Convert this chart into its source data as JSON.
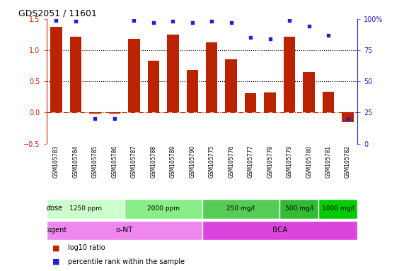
{
  "title": "GDS2051 / 11601",
  "samples": [
    "GSM105783",
    "GSM105784",
    "GSM105785",
    "GSM105786",
    "GSM105787",
    "GSM105788",
    "GSM105789",
    "GSM105790",
    "GSM105775",
    "GSM105776",
    "GSM105777",
    "GSM105778",
    "GSM105779",
    "GSM105780",
    "GSM105781",
    "GSM105782"
  ],
  "log10_ratio": [
    1.37,
    1.22,
    -0.02,
    -0.02,
    1.18,
    0.83,
    1.25,
    0.68,
    1.13,
    0.85,
    0.31,
    0.32,
    1.22,
    0.65,
    0.33,
    -0.15
  ],
  "percentile": [
    99,
    98,
    20,
    20,
    99,
    97,
    98,
    97,
    98,
    97,
    85,
    84,
    99,
    94,
    87,
    20
  ],
  "bar_color": "#bb2200",
  "dot_color": "#2222cc",
  "ylim_left": [
    -0.5,
    1.5
  ],
  "ylim_right": [
    0,
    100
  ],
  "yticks_left": [
    -0.5,
    0.0,
    0.5,
    1.0,
    1.5
  ],
  "yticks_right": [
    0,
    25,
    50,
    75,
    100
  ],
  "hlines": [
    0.0,
    0.5,
    1.0
  ],
  "hline_colors": [
    "#cc2200",
    "#000000",
    "#000000"
  ],
  "hline_styles": [
    "dashdot",
    "dotted",
    "dotted"
  ],
  "dose_groups": [
    {
      "label": "1250 ppm",
      "start": 0,
      "end": 4,
      "color": "#ccffcc"
    },
    {
      "label": "2000 ppm",
      "start": 4,
      "end": 8,
      "color": "#88ee88"
    },
    {
      "label": "250 mg/l",
      "start": 8,
      "end": 12,
      "color": "#55cc55"
    },
    {
      "label": "500 mg/l",
      "start": 12,
      "end": 14,
      "color": "#33bb33"
    },
    {
      "label": "1000 mg/l",
      "start": 14,
      "end": 16,
      "color": "#00cc00"
    }
  ],
  "agent_groups": [
    {
      "label": "o-NT",
      "start": 0,
      "end": 8,
      "color": "#ee88ee"
    },
    {
      "label": "BCA",
      "start": 8,
      "end": 16,
      "color": "#dd44dd"
    }
  ],
  "dose_label": "dose",
  "agent_label": "agent",
  "legend_bar_label": "log10 ratio",
  "legend_dot_label": "percentile rank within the sample",
  "bg_color": "#ffffff",
  "axis_color_left": "#cc2200",
  "axis_color_right": "#2222cc",
  "xtick_bg": "#bbbbbb",
  "xtick_divider": "#ffffff"
}
